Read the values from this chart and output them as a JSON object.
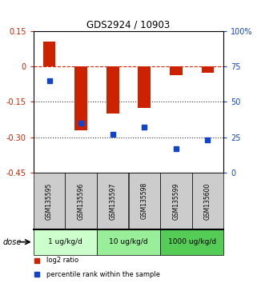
{
  "title": "GDS2924 / 10903",
  "samples": [
    "GSM135595",
    "GSM135596",
    "GSM135597",
    "GSM135598",
    "GSM135599",
    "GSM135600"
  ],
  "log2_ratio": [
    0.105,
    -0.27,
    -0.2,
    -0.175,
    -0.035,
    -0.025
  ],
  "percentile_rank": [
    65,
    35,
    27,
    32,
    17,
    23
  ],
  "ylim_left": [
    -0.45,
    0.15
  ],
  "ylim_right": [
    0,
    100
  ],
  "yticks_left": [
    0.15,
    0,
    -0.15,
    -0.3,
    -0.45
  ],
  "yticks_right": [
    100,
    75,
    50,
    25,
    0
  ],
  "ytick_labels_left": [
    "0.15",
    "0",
    "-0.15",
    "-0.30",
    "-0.45"
  ],
  "ytick_labels_right": [
    "100%",
    "75",
    "50",
    "25",
    "0"
  ],
  "bar_color": "#cc2200",
  "dot_color": "#1144cc",
  "gsm_bg_color": "#cccccc",
  "dose_groups": [
    {
      "label": "1 ug/kg/d",
      "indices": [
        0,
        1
      ],
      "color": "#ccffcc"
    },
    {
      "label": "10 ug/kg/d",
      "indices": [
        2,
        3
      ],
      "color": "#99ee99"
    },
    {
      "label": "1000 ug/kg/d",
      "indices": [
        4,
        5
      ],
      "color": "#55cc55"
    }
  ],
  "dose_label": "dose",
  "legend_red": "log2 ratio",
  "legend_blue": "percentile rank within the sample",
  "hline_zero_color": "#dd2200",
  "hline_dotted_color": "#333333",
  "bar_width": 0.4
}
